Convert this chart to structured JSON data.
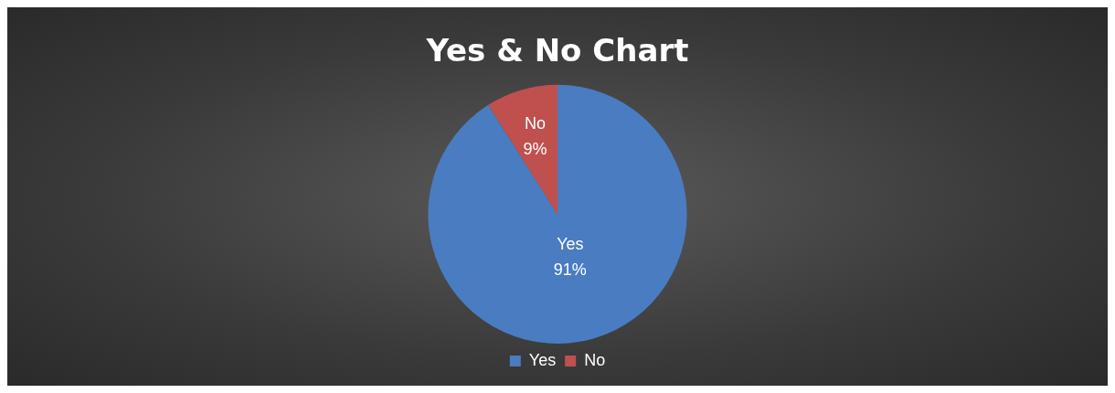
{
  "chart_data": {
    "type": "pie",
    "title": "Yes & No Chart",
    "categories": [
      "Yes",
      "No"
    ],
    "values": [
      91,
      9
    ],
    "colors": [
      "#4a7cc1",
      "#c0504d"
    ],
    "value_labels": [
      "91%",
      "9%"
    ],
    "legend": "bottom"
  }
}
